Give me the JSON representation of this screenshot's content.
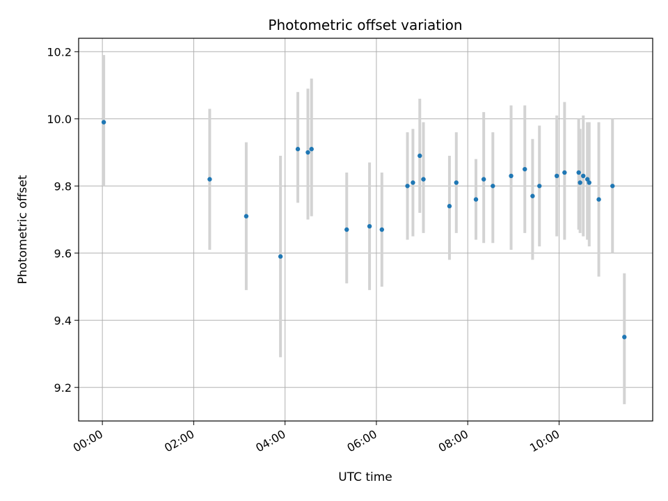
{
  "chart_data": {
    "type": "scatter",
    "title": "Photometric offset variation",
    "xlabel": "UTC time",
    "ylabel": "Photometric offset",
    "x_unit": "hours UTC",
    "xlim": [
      -0.52,
      12.05
    ],
    "ylim": [
      9.1,
      10.24
    ],
    "x_ticks": [
      {
        "value": 0,
        "label": "00:00"
      },
      {
        "value": 2,
        "label": "02:00"
      },
      {
        "value": 4,
        "label": "04:00"
      },
      {
        "value": 6,
        "label": "06:00"
      },
      {
        "value": 8,
        "label": "08:00"
      },
      {
        "value": 10,
        "label": "10:00"
      }
    ],
    "y_ticks": [
      {
        "value": 9.2,
        "label": "9.2"
      },
      {
        "value": 9.4,
        "label": "9.4"
      },
      {
        "value": 9.6,
        "label": "9.6"
      },
      {
        "value": 9.8,
        "label": "9.8"
      },
      {
        "value": 10.0,
        "label": "10.0"
      },
      {
        "value": 10.2,
        "label": "10.2"
      }
    ],
    "grid": true,
    "marker_color": "#1f77b4",
    "errorbar_color": "#d3d3d3",
    "points": [
      {
        "x": 0.03,
        "y": 9.99,
        "lo": 9.8,
        "hi": 10.19
      },
      {
        "x": 2.35,
        "y": 9.82,
        "lo": 9.61,
        "hi": 10.03
      },
      {
        "x": 3.15,
        "y": 9.71,
        "lo": 9.49,
        "hi": 9.93
      },
      {
        "x": 3.9,
        "y": 9.59,
        "lo": 9.29,
        "hi": 9.89
      },
      {
        "x": 4.28,
        "y": 9.91,
        "lo": 9.75,
        "hi": 10.08
      },
      {
        "x": 4.5,
        "y": 9.9,
        "lo": 9.7,
        "hi": 10.09
      },
      {
        "x": 4.58,
        "y": 9.91,
        "lo": 9.71,
        "hi": 10.12
      },
      {
        "x": 5.35,
        "y": 9.67,
        "lo": 9.51,
        "hi": 9.84
      },
      {
        "x": 5.85,
        "y": 9.68,
        "lo": 9.49,
        "hi": 9.87
      },
      {
        "x": 6.12,
        "y": 9.67,
        "lo": 9.5,
        "hi": 9.84
      },
      {
        "x": 6.68,
        "y": 9.8,
        "lo": 9.64,
        "hi": 9.96
      },
      {
        "x": 6.8,
        "y": 9.81,
        "lo": 9.65,
        "hi": 9.97
      },
      {
        "x": 6.95,
        "y": 9.89,
        "lo": 9.72,
        "hi": 10.06
      },
      {
        "x": 7.03,
        "y": 9.82,
        "lo": 9.66,
        "hi": 9.99
      },
      {
        "x": 7.6,
        "y": 9.74,
        "lo": 9.58,
        "hi": 9.89
      },
      {
        "x": 7.75,
        "y": 9.81,
        "lo": 9.66,
        "hi": 9.96
      },
      {
        "x": 8.18,
        "y": 9.76,
        "lo": 9.64,
        "hi": 9.88
      },
      {
        "x": 8.35,
        "y": 9.82,
        "lo": 9.63,
        "hi": 10.02
      },
      {
        "x": 8.55,
        "y": 9.8,
        "lo": 9.63,
        "hi": 9.96
      },
      {
        "x": 8.95,
        "y": 9.83,
        "lo": 9.61,
        "hi": 10.04
      },
      {
        "x": 9.25,
        "y": 9.85,
        "lo": 9.66,
        "hi": 10.04
      },
      {
        "x": 9.42,
        "y": 9.77,
        "lo": 9.58,
        "hi": 9.94
      },
      {
        "x": 9.57,
        "y": 9.8,
        "lo": 9.62,
        "hi": 9.98
      },
      {
        "x": 9.95,
        "y": 9.83,
        "lo": 9.65,
        "hi": 10.01
      },
      {
        "x": 10.12,
        "y": 9.84,
        "lo": 9.64,
        "hi": 10.05
      },
      {
        "x": 10.43,
        "y": 9.84,
        "lo": 9.67,
        "hi": 10.0
      },
      {
        "x": 10.46,
        "y": 9.81,
        "lo": 9.66,
        "hi": 9.97
      },
      {
        "x": 10.53,
        "y": 9.83,
        "lo": 9.65,
        "hi": 10.01
      },
      {
        "x": 10.62,
        "y": 9.82,
        "lo": 9.64,
        "hi": 9.99
      },
      {
        "x": 10.66,
        "y": 9.81,
        "lo": 9.62,
        "hi": 9.99
      },
      {
        "x": 10.87,
        "y": 9.76,
        "lo": 9.53,
        "hi": 9.99
      },
      {
        "x": 11.17,
        "y": 9.8,
        "lo": 9.6,
        "hi": 10.0
      },
      {
        "x": 11.43,
        "y": 9.35,
        "lo": 9.15,
        "hi": 9.54
      }
    ]
  }
}
